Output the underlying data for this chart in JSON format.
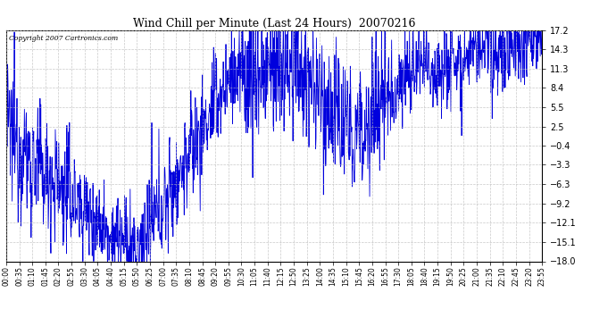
{
  "title": "Wind Chill per Minute (Last 24 Hours)  20070216",
  "copyright_text": "Copyright 2007 Cartronics.com",
  "line_color": "#0000dd",
  "background_color": "#ffffff",
  "plot_bg_color": "#ffffff",
  "grid_color": "#bbbbbb",
  "yticks": [
    17.2,
    14.3,
    11.3,
    8.4,
    5.5,
    2.5,
    -0.4,
    -3.3,
    -6.3,
    -9.2,
    -12.1,
    -15.1,
    -18.0
  ],
  "ylim": [
    -18.0,
    17.2
  ],
  "xtick_labels": [
    "00:00",
    "00:35",
    "01:10",
    "01:45",
    "02:20",
    "02:55",
    "03:30",
    "04:05",
    "04:40",
    "05:15",
    "05:50",
    "06:25",
    "07:00",
    "07:35",
    "08:10",
    "08:45",
    "09:20",
    "09:55",
    "10:30",
    "11:05",
    "11:40",
    "12:15",
    "12:50",
    "13:25",
    "14:00",
    "14:35",
    "15:10",
    "15:45",
    "16:20",
    "16:55",
    "17:30",
    "18:05",
    "18:40",
    "19:15",
    "19:50",
    "20:25",
    "21:00",
    "21:35",
    "22:10",
    "22:45",
    "23:20",
    "23:55"
  ],
  "seed": 12345
}
